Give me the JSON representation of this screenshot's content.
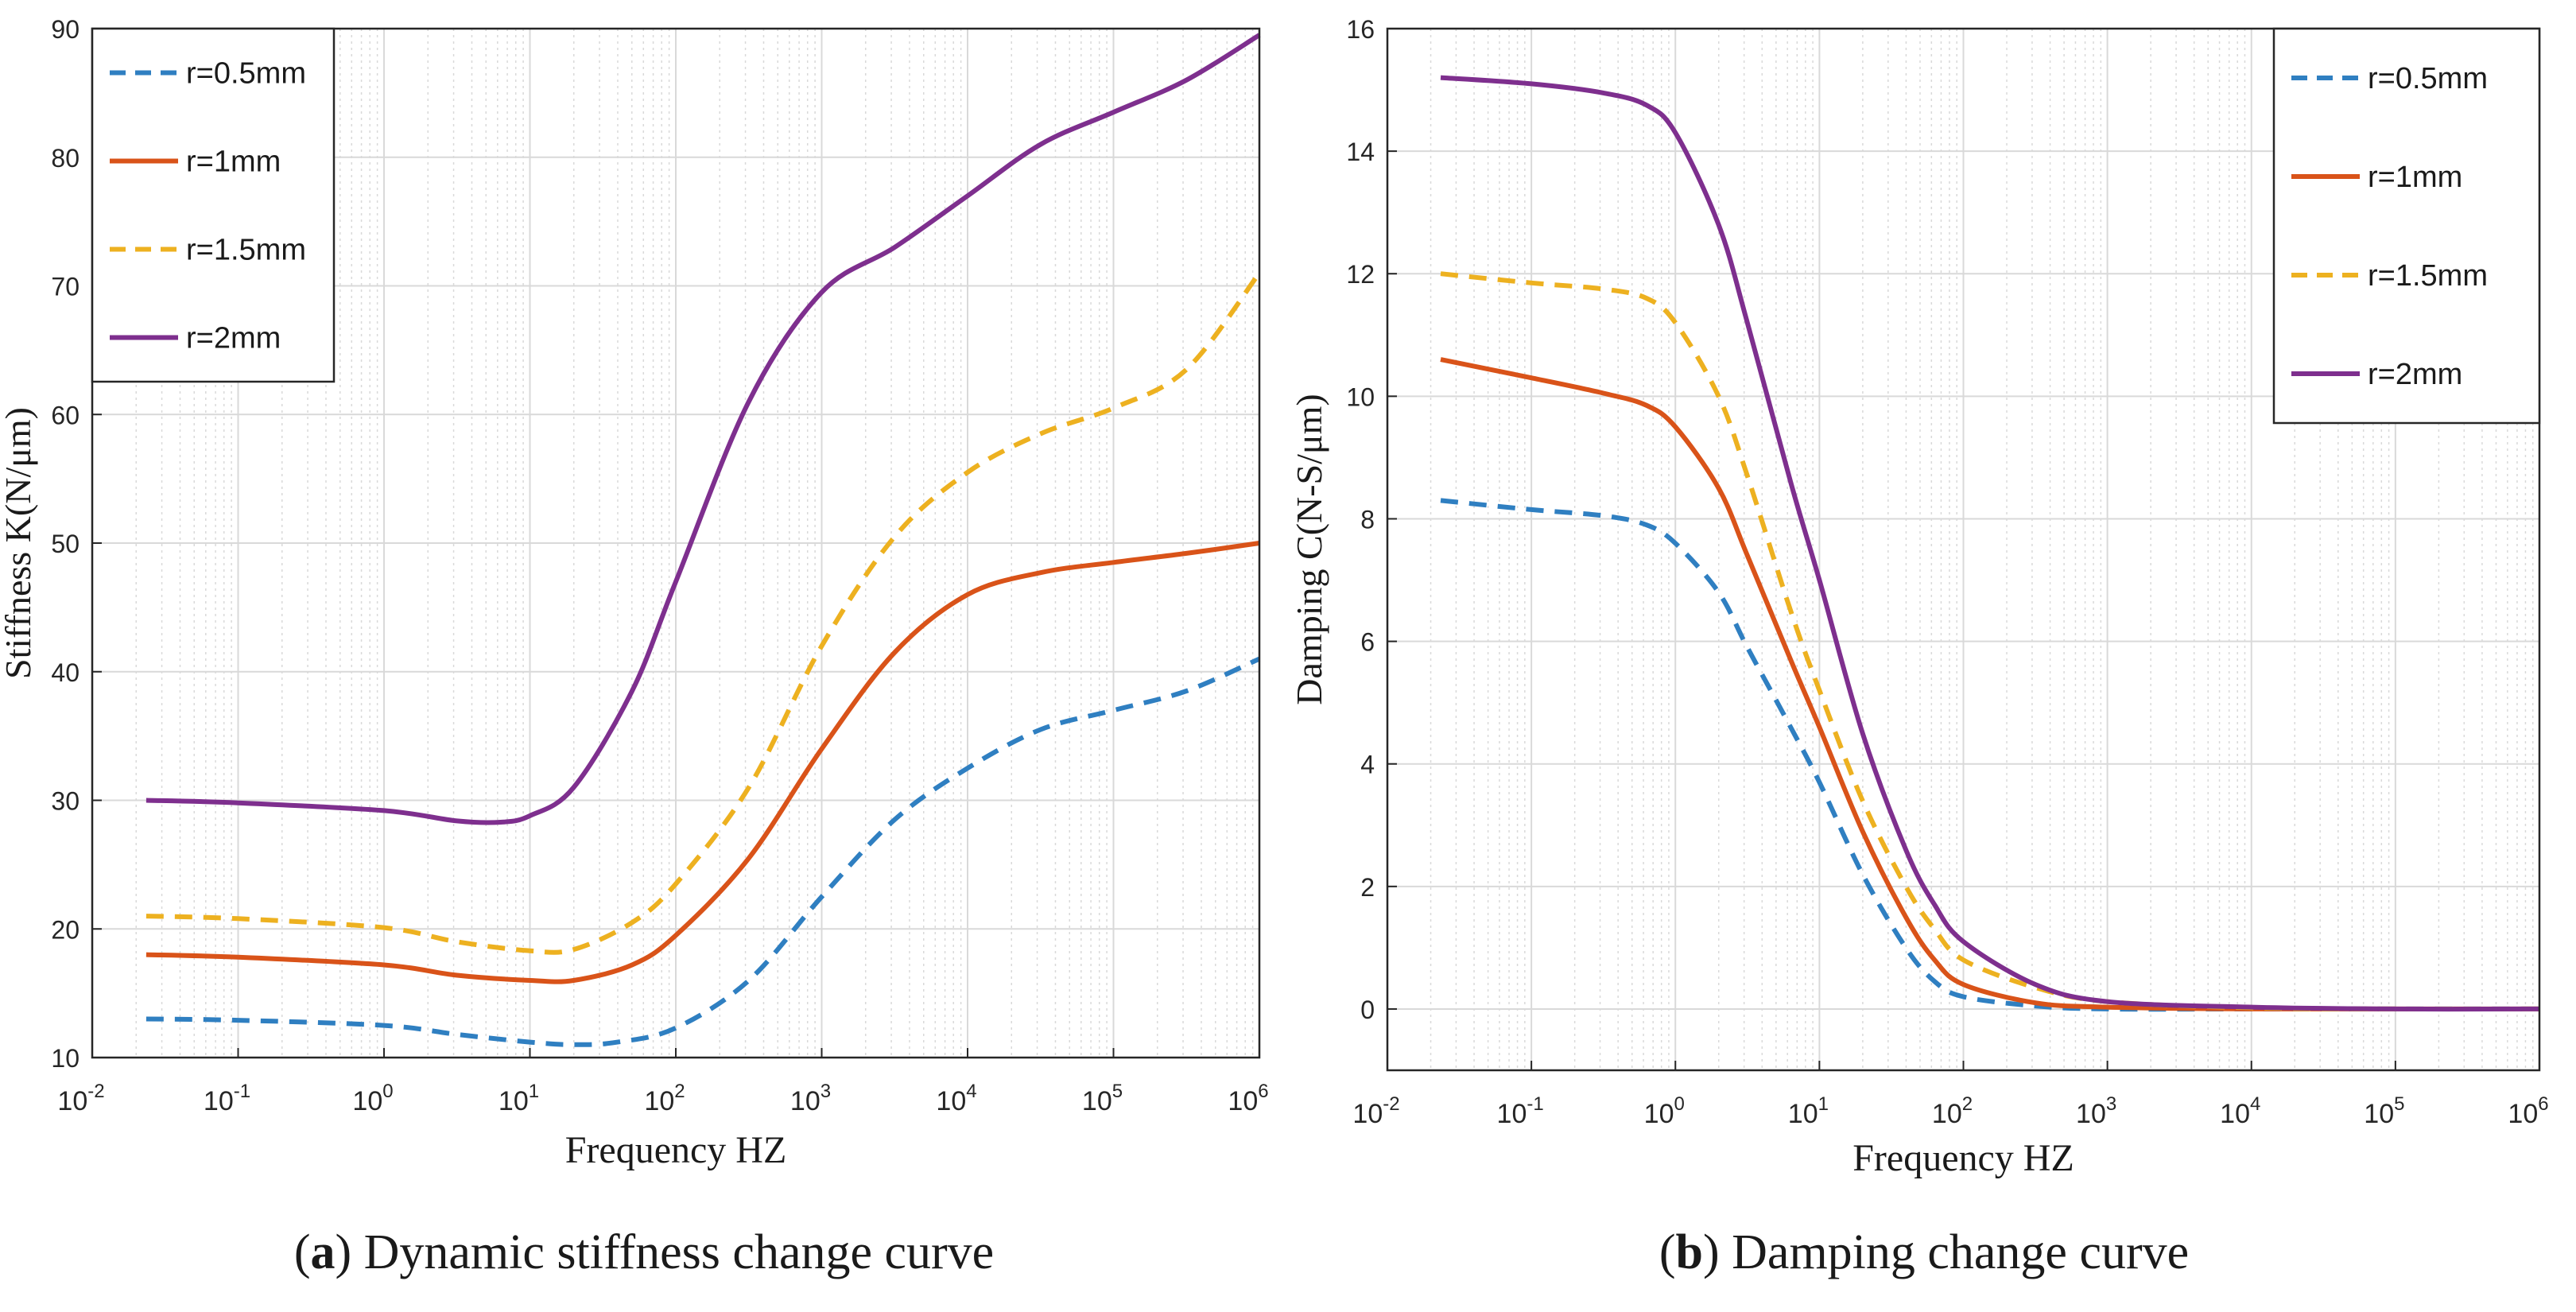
{
  "colors": {
    "r05": "#2f7fc1",
    "r1": "#d95319",
    "r15": "#edb120",
    "r2": "#7e2f8e",
    "grid": "#d9d9d9",
    "axis": "#262626"
  },
  "chart_data": [
    {
      "type": "line",
      "title": "",
      "xlabel": "Frequency HZ",
      "ylabel": "Stiffness K(N/μm)",
      "xscale": "log",
      "xlim_exponent": [
        -2,
        6
      ],
      "xtick_base": "10",
      "xtick_exponents": [
        "-2",
        "-1",
        "0",
        "1",
        "2",
        "3",
        "4",
        "5",
        "6"
      ],
      "ylim": [
        10,
        90
      ],
      "yticks": [
        "10",
        "20",
        "30",
        "40",
        "50",
        "60",
        "70",
        "80",
        "90"
      ],
      "grid": true,
      "legend_position": "top-left",
      "caption": {
        "letter": "a",
        "text": "Dynamic stiffness change curve"
      },
      "series": [
        {
          "name": "r=0.5mm",
          "color_key": "r05",
          "dash": "dashed",
          "points": [
            [
              -1.63,
              13.0
            ],
            [
              -1,
              12.9
            ],
            [
              0,
              12.5
            ],
            [
              0.5,
              11.8
            ],
            [
              1,
              11.2
            ],
            [
              1.3,
              11.0
            ],
            [
              1.6,
              11.2
            ],
            [
              2,
              12.3
            ],
            [
              2.5,
              16.0
            ],
            [
              3,
              22.5
            ],
            [
              3.5,
              28.5
            ],
            [
              4,
              32.5
            ],
            [
              4.5,
              35.5
            ],
            [
              5,
              37.0
            ],
            [
              5.5,
              38.5
            ],
            [
              6,
              41.0
            ]
          ]
        },
        {
          "name": "r=1mm",
          "color_key": "r1",
          "dash": "solid",
          "points": [
            [
              -1.63,
              18.0
            ],
            [
              -1,
              17.8
            ],
            [
              0,
              17.2
            ],
            [
              0.5,
              16.4
            ],
            [
              1,
              16.0
            ],
            [
              1.3,
              16.0
            ],
            [
              1.7,
              17.2
            ],
            [
              2,
              19.5
            ],
            [
              2.5,
              25.5
            ],
            [
              3,
              34.0
            ],
            [
              3.5,
              41.5
            ],
            [
              4,
              46.0
            ],
            [
              4.5,
              47.7
            ],
            [
              5,
              48.5
            ],
            [
              5.5,
              49.2
            ],
            [
              6,
              50.0
            ]
          ]
        },
        {
          "name": "r=1.5mm",
          "color_key": "r15",
          "dash": "dashed",
          "points": [
            [
              -1.63,
              21.0
            ],
            [
              -1,
              20.8
            ],
            [
              0,
              20.1
            ],
            [
              0.5,
              19.0
            ],
            [
              1,
              18.3
            ],
            [
              1.3,
              18.4
            ],
            [
              1.7,
              20.5
            ],
            [
              2,
              23.5
            ],
            [
              2.5,
              31.0
            ],
            [
              3,
              42.0
            ],
            [
              3.5,
              50.5
            ],
            [
              4,
              55.5
            ],
            [
              4.5,
              58.5
            ],
            [
              5,
              60.5
            ],
            [
              5.5,
              63.5
            ],
            [
              6,
              71.0
            ]
          ]
        },
        {
          "name": "r=2mm",
          "color_key": "r2",
          "dash": "solid",
          "points": [
            [
              -1.63,
              30.0
            ],
            [
              -1,
              29.8
            ],
            [
              0,
              29.2
            ],
            [
              0.5,
              28.4
            ],
            [
              0.8,
              28.3
            ],
            [
              1,
              28.8
            ],
            [
              1.3,
              31.0
            ],
            [
              1.7,
              38.5
            ],
            [
              2,
              47.0
            ],
            [
              2.5,
              61.0
            ],
            [
              3,
              69.5
            ],
            [
              3.5,
              73.0
            ],
            [
              4,
              77.0
            ],
            [
              4.5,
              81.0
            ],
            [
              5,
              83.5
            ],
            [
              5.5,
              86.0
            ],
            [
              6,
              89.5
            ]
          ]
        }
      ]
    },
    {
      "type": "line",
      "title": "",
      "xlabel": "Frequency HZ",
      "ylabel": "Damping C(N-S/μm)",
      "xscale": "log",
      "xlim_exponent": [
        -2,
        6
      ],
      "xtick_base": "10",
      "xtick_exponents": [
        "-2",
        "-1",
        "0",
        "1",
        "2",
        "3",
        "4",
        "5",
        "6"
      ],
      "ylim": [
        -1,
        16
      ],
      "yticks": [
        "0",
        "2",
        "4",
        "6",
        "8",
        "10",
        "12",
        "14",
        "16"
      ],
      "grid": true,
      "legend_position": "top-right",
      "caption": {
        "letter": "b",
        "text": "Damping change curve"
      },
      "series": [
        {
          "name": "r=0.5mm",
          "color_key": "r05",
          "dash": "dashed",
          "points": [
            [
              -1.63,
              8.3
            ],
            [
              -1,
              8.15
            ],
            [
              -0.5,
              8.05
            ],
            [
              -0.2,
              7.9
            ],
            [
              0,
              7.6
            ],
            [
              0.3,
              6.8
            ],
            [
              0.5,
              5.9
            ],
            [
              0.8,
              4.6
            ],
            [
              1,
              3.7
            ],
            [
              1.3,
              2.2
            ],
            [
              1.6,
              1.0
            ],
            [
              1.8,
              0.45
            ],
            [
              2,
              0.2
            ],
            [
              2.5,
              0.05
            ],
            [
              3,
              0.0
            ],
            [
              4,
              0.0
            ],
            [
              5,
              0.0
            ],
            [
              6,
              0.0
            ]
          ]
        },
        {
          "name": "r=1mm",
          "color_key": "r1",
          "dash": "solid",
          "points": [
            [
              -1.63,
              10.6
            ],
            [
              -1,
              10.3
            ],
            [
              -0.5,
              10.05
            ],
            [
              -0.2,
              9.85
            ],
            [
              0,
              9.5
            ],
            [
              0.3,
              8.5
            ],
            [
              0.5,
              7.4
            ],
            [
              0.8,
              5.7
            ],
            [
              1,
              4.6
            ],
            [
              1.3,
              2.9
            ],
            [
              1.6,
              1.5
            ],
            [
              1.8,
              0.8
            ],
            [
              2,
              0.4
            ],
            [
              2.5,
              0.1
            ],
            [
              3,
              0.03
            ],
            [
              4,
              0.0
            ],
            [
              5,
              0.0
            ],
            [
              6,
              0.0
            ]
          ]
        },
        {
          "name": "r=1.5mm",
          "color_key": "r15",
          "dash": "dashed",
          "points": [
            [
              -1.63,
              12.0
            ],
            [
              -1,
              11.85
            ],
            [
              -0.5,
              11.75
            ],
            [
              -0.2,
              11.6
            ],
            [
              0,
              11.2
            ],
            [
              0.3,
              10.0
            ],
            [
              0.5,
              8.7
            ],
            [
              0.8,
              6.5
            ],
            [
              1,
              5.2
            ],
            [
              1.3,
              3.4
            ],
            [
              1.6,
              2.0
            ],
            [
              1.8,
              1.3
            ],
            [
              2,
              0.8
            ],
            [
              2.5,
              0.35
            ],
            [
              3,
              0.12
            ],
            [
              4,
              0.02
            ],
            [
              5,
              0.0
            ],
            [
              6,
              0.0
            ]
          ]
        },
        {
          "name": "r=2mm",
          "color_key": "r2",
          "dash": "solid",
          "points": [
            [
              -1.63,
              15.2
            ],
            [
              -1,
              15.1
            ],
            [
              -0.5,
              14.95
            ],
            [
              -0.2,
              14.75
            ],
            [
              0,
              14.3
            ],
            [
              0.3,
              12.8
            ],
            [
              0.5,
              11.2
            ],
            [
              0.8,
              8.6
            ],
            [
              1,
              7.0
            ],
            [
              1.3,
              4.5
            ],
            [
              1.6,
              2.6
            ],
            [
              1.8,
              1.7
            ],
            [
              2,
              1.1
            ],
            [
              2.5,
              0.4
            ],
            [
              3,
              0.12
            ],
            [
              4,
              0.03
            ],
            [
              5,
              0.0
            ],
            [
              6,
              0.0
            ]
          ]
        }
      ]
    }
  ]
}
